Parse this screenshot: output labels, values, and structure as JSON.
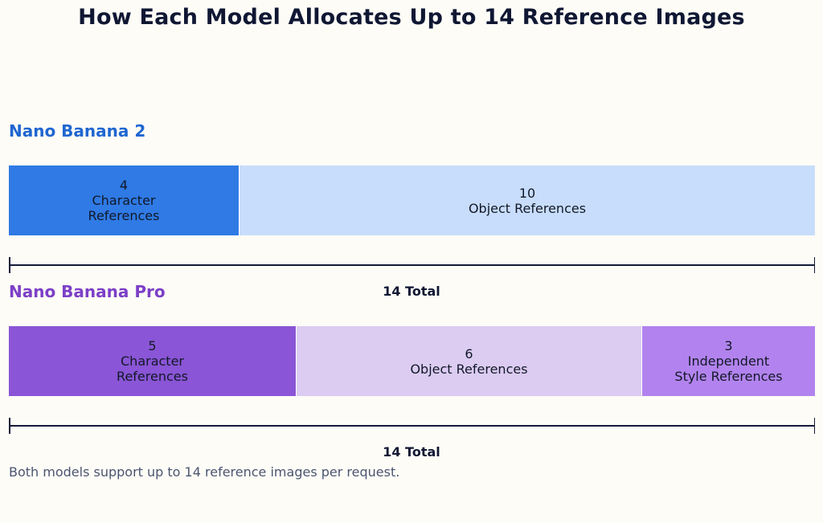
{
  "chart_data": {
    "type": "bar",
    "title": "How Each Model Allocates Up to 14 Reference Images",
    "orientation": "horizontal-stacked",
    "total_capacity": 14,
    "models": [
      {
        "name": "Nano Banana 2",
        "name_color": "#1f66d1",
        "segments": [
          {
            "value": 4,
            "value_label": "4",
            "label_lines": [
              "Character",
              "References"
            ],
            "color": "#2f7ae5"
          },
          {
            "value": 10,
            "value_label": "10",
            "label_lines": [
              "Object References"
            ],
            "color": "#c8ddfb"
          }
        ],
        "total_label": "14 Total"
      },
      {
        "name": "Nano Banana Pro",
        "name_color": "#7c3fc7",
        "segments": [
          {
            "value": 5,
            "value_label": "5",
            "label_lines": [
              "Character",
              "References"
            ],
            "color": "#8a55d6"
          },
          {
            "value": 6,
            "value_label": "6",
            "label_lines": [
              "Object References"
            ],
            "color": "#dcccf2"
          },
          {
            "value": 3,
            "value_label": "3",
            "label_lines": [
              "Independent",
              "Style References"
            ],
            "color": "#b283ee"
          }
        ],
        "total_label": "14 Total"
      }
    ]
  },
  "footnote": "Both models support up to 14 reference images per request."
}
